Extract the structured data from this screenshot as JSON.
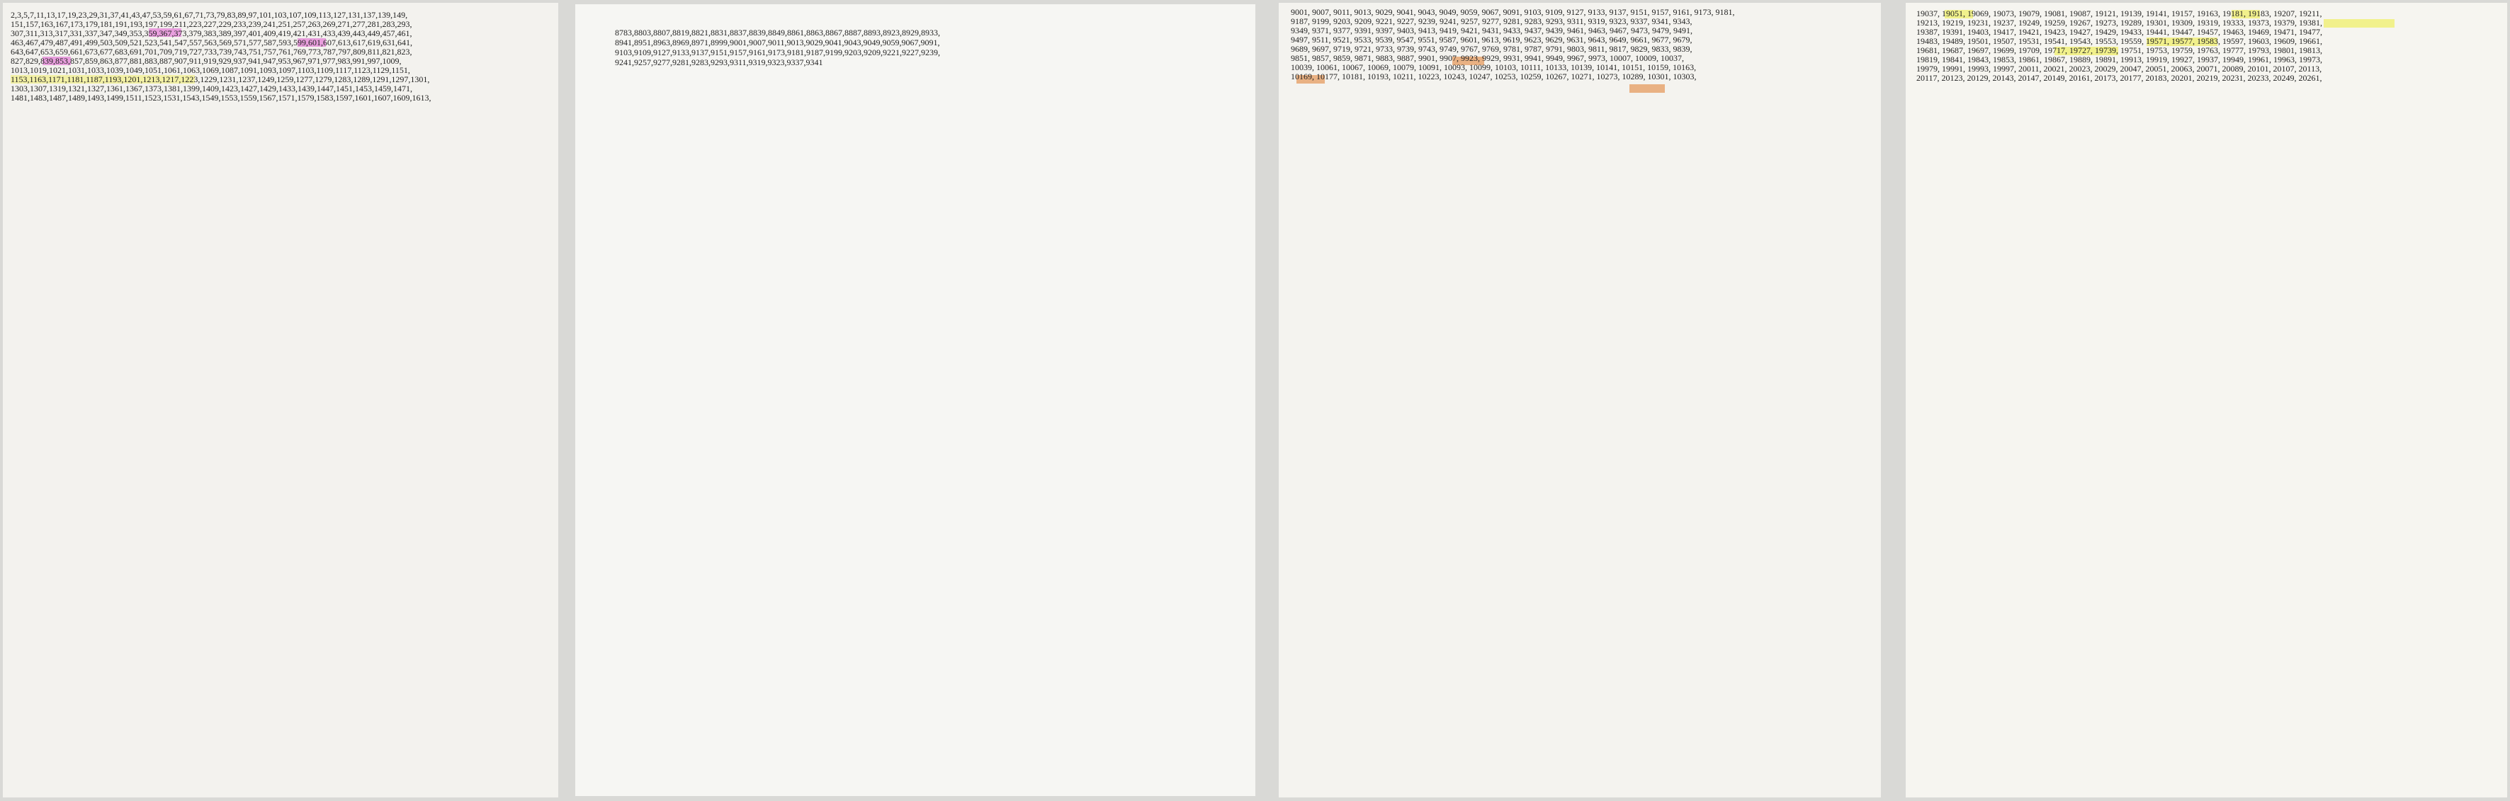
{
  "pages": [
    {
      "lines": [
        "2,3,5,7,11,13,17,19,23,29,31,37,41,43,47,53,59,61,67,71,73,79,83,89,97,101,103,107,109,113,127,131,137,139,149,",
        "151,157,163,167,173,179,181,191,193,197,199,211,223,227,229,233,239,241,251,257,263,269,271,277,281,283,293,",
        "307,311,313,317,331,337,347,349,353,359,367,373,379,383,389,397,401,409,419,421,431,433,439,443,449,457,461,",
        "463,467,479,487,491,499,503,509,521,523,541,547,557,563,569,571,577,587,593,599,601,607,613,617,619,631,641,",
        "643,647,653,659,661,673,677,683,691,701,709,719,727,733,739,743,751,757,761,769,773,787,797,809,811,821,823,",
        "827,829,839,853,857,859,863,877,881,883,887,907,911,919,929,937,941,947,953,967,971,977,983,991,997,1009,",
        "1013,1019,1021,1031,1033,1039,1049,1051,1061,1063,1069,1087,1091,1093,1097,1103,1109,1117,1123,1129,1151,",
        "1153,1163,1171,1181,1187,1193,1201,1213,1217,1223,1229,1231,1237,1249,1259,1277,1279,1283,1289,1291,1297,1301,",
        "1303,1307,1319,1321,1327,1361,1367,1373,1381,1399,1409,1423,1427,1429,1433,1439,1447,1451,1453,1459,1471,",
        "1481,1483,1487,1489,1493,1499,1511,1523,1531,1543,1549,1553,1559,1567,1571,1579,1583,1597,1601,1607,1609,1613,"
      ]
    },
    {
      "lines": [
        "8783,8803,8807,8819,8821,8831,8837,8839,8849,8861,8863,8867,8887,8893,8923,8929,8933,",
        "8941,8951,8963,8969,8971,8999,9001,9007,9011,9013,9029,9041,9043,9049,9059,9067,9091,",
        "9103,9109,9127,9133,9137,9151,9157,9161,9173,9181,9187,9199,9203,9209,9221,9227,9239,",
        "9241,9257,9277,9281,9283,9293,9311,9319,9323,9337,9341"
      ]
    },
    {
      "lines": [
        "9001, 9007, 9011, 9013, 9029, 9041, 9043, 9049, 9059, 9067, 9091, 9103, 9109, 9127, 9133, 9137, 9151, 9157, 9161, 9173, 9181,",
        "9187, 9199, 9203, 9209, 9221, 9227, 9239, 9241, 9257, 9277, 9281, 9283, 9293, 9311, 9319, 9323, 9337, 9341, 9343,",
        "9349, 9371, 9377, 9391, 9397, 9403, 9413, 9419, 9421, 9431, 9433, 9437, 9439, 9461, 9463, 9467, 9473, 9479, 9491,",
        "9497, 9511, 9521, 9533, 9539, 9547, 9551, 9587, 9601, 9613, 9619, 9623, 9629, 9631, 9643, 9649, 9661, 9677, 9679,",
        "9689, 9697, 9719, 9721, 9733, 9739, 9743, 9749, 9767, 9769, 9781, 9787, 9791, 9803, 9811, 9817, 9829, 9833, 9839,",
        "9851, 9857, 9859, 9871, 9883, 9887, 9901, 9907, 9923, 9929, 9931, 9941, 9949, 9967, 9973, 10007, 10009, 10037,",
        "10039, 10061, 10067, 10069, 10079, 10091, 10093, 10099, 10103, 10111, 10133, 10139, 10141, 10151, 10159, 10163,",
        "10169, 10177, 10181, 10193, 10211, 10223, 10243, 10247, 10253, 10259, 10267, 10271, 10273, 10289, 10301, 10303,"
      ]
    },
    {
      "lines": [
        "19037, 19051, 19069, 19073, 19079, 19081, 19087, 19121, 19139, 19141, 19157, 19163, 19181, 19183, 19207, 19211,",
        "19213, 19219, 19231, 19237, 19249, 19259, 19267, 19273, 19289, 19301, 19309, 19319, 19333, 19373, 19379, 19381,",
        "19387, 19391, 19403, 19417, 19421, 19423, 19427, 19429, 19433, 19441, 19447, 19457, 19463, 19469, 19471, 19477,",
        "19483, 19489, 19501, 19507, 19531, 19541, 19543, 19553, 19559, 19571, 19577, 19583, 19597, 19603, 19609, 19661,",
        "19681, 19687, 19697, 19699, 19709, 19717, 19727, 19739, 19751, 19753, 19759, 19763, 19777, 19793, 19801, 19813,",
        "19819, 19841, 19843, 19853, 19861, 19867, 19889, 19891, 19913, 19919, 19927, 19937, 19949, 19961, 19963, 19973,",
        "19979, 19991, 19993, 19997, 20011, 20021, 20023, 20029, 20047, 20051, 20063, 20071, 20089, 20101, 20107, 20113,",
        "20117, 20123, 20129, 20143, 20147, 20149, 20161, 20173, 20177, 20183, 20201, 20219, 20231, 20233, 20249, 20261,"
      ]
    }
  ]
}
